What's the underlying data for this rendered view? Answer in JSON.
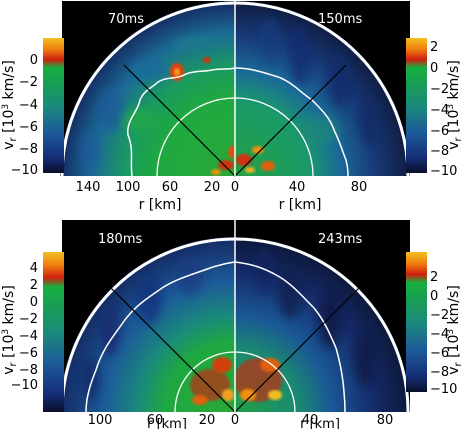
{
  "chart_data": [
    {
      "type": "heatmap",
      "panels": [
        {
          "time_label": "70ms",
          "side": "left"
        },
        {
          "time_label": "150ms",
          "side": "right"
        }
      ],
      "xlabel_left": "r [km]",
      "xlabel_right": "r [km]",
      "ylabel_left": "v_r [10^3 km/s]",
      "ylabel_right": "v_r [10^3 km/s]",
      "x_left_ticks": [
        "140",
        "100",
        "60",
        "20",
        "0"
      ],
      "x_right_ticks": [
        "0",
        "40",
        "80"
      ],
      "colorbar_left_ticks": [
        "0",
        "−2",
        "−4",
        "−6",
        "−8",
        "−10"
      ],
      "colorbar_left_range": [
        -10,
        2
      ],
      "colorbar_right_ticks": [
        "2",
        "0",
        "−2",
        "−4",
        "−6",
        "−8",
        "−10"
      ],
      "colorbar_right_range": [
        -10,
        3
      ],
      "colormap": [
        "#0a0f2a",
        "#15307a",
        "#1c5a9a",
        "#1a8a7a",
        "#18a050",
        "#16b040",
        "#d02010",
        "#f08010",
        "#f0c020"
      ]
    },
    {
      "type": "heatmap",
      "panels": [
        {
          "time_label": "180ms",
          "side": "left"
        },
        {
          "time_label": "243ms",
          "side": "right"
        }
      ],
      "xlabel_left": "r [km]",
      "xlabel_right": "r [km]",
      "ylabel_left": "v_r [10^3 km/s]",
      "ylabel_right": "v_r [10^3 km/s]",
      "x_left_ticks": [
        "100",
        "60",
        "20",
        "0"
      ],
      "x_right_ticks": [
        "0",
        "40",
        "80"
      ],
      "colorbar_left_ticks": [
        "4",
        "2",
        "0",
        "−2",
        "−4",
        "−6",
        "−8",
        "−10"
      ],
      "colorbar_left_range": [
        -10,
        5
      ],
      "colorbar_right_ticks": [
        "2",
        "0",
        "−2",
        "−4",
        "−6",
        "−8",
        "−10"
      ],
      "colorbar_right_range": [
        -10,
        3
      ],
      "colormap": [
        "#0a0f2a",
        "#15307a",
        "#1c5a9a",
        "#1a8a7a",
        "#18a050",
        "#16b040",
        "#d02010",
        "#f08010",
        "#f0c020"
      ]
    }
  ]
}
